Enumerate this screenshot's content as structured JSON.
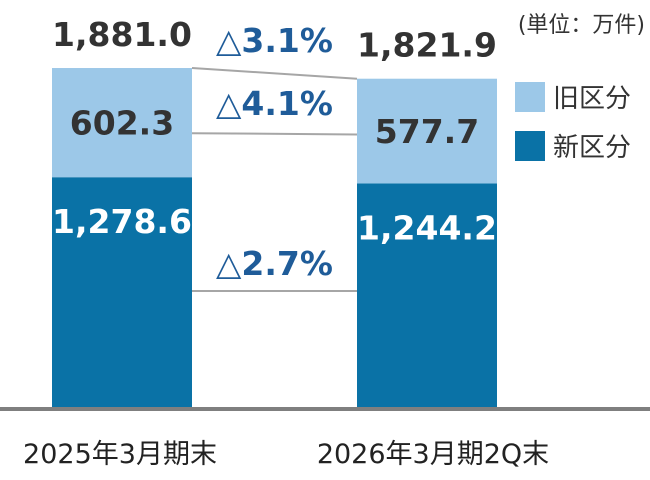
{
  "chart_data": {
    "type": "bar",
    "stacked": true,
    "unit_label": "(単位：万件)",
    "categories": [
      "2025年3月期末",
      "2026年3月期2Q末"
    ],
    "series": [
      {
        "name": "新区分",
        "values": [
          1278.6,
          1244.2
        ],
        "labels": [
          "1,278.6",
          "1,244.2"
        ],
        "color": "#0a72a6"
      },
      {
        "name": "旧区分",
        "values": [
          602.3,
          577.7
        ],
        "labels": [
          "602.3",
          "577.7"
        ],
        "color": "#9cc8e8"
      }
    ],
    "totals": [
      1881.0,
      1821.9
    ],
    "total_labels": [
      "1,881.0",
      "1,821.9"
    ],
    "changes": {
      "total": "△3.1%",
      "old": "△4.1%",
      "new": "△2.7%"
    },
    "legend": [
      "旧区分",
      "新区分"
    ],
    "ylim": [
      0,
      1950
    ],
    "grid": false
  }
}
